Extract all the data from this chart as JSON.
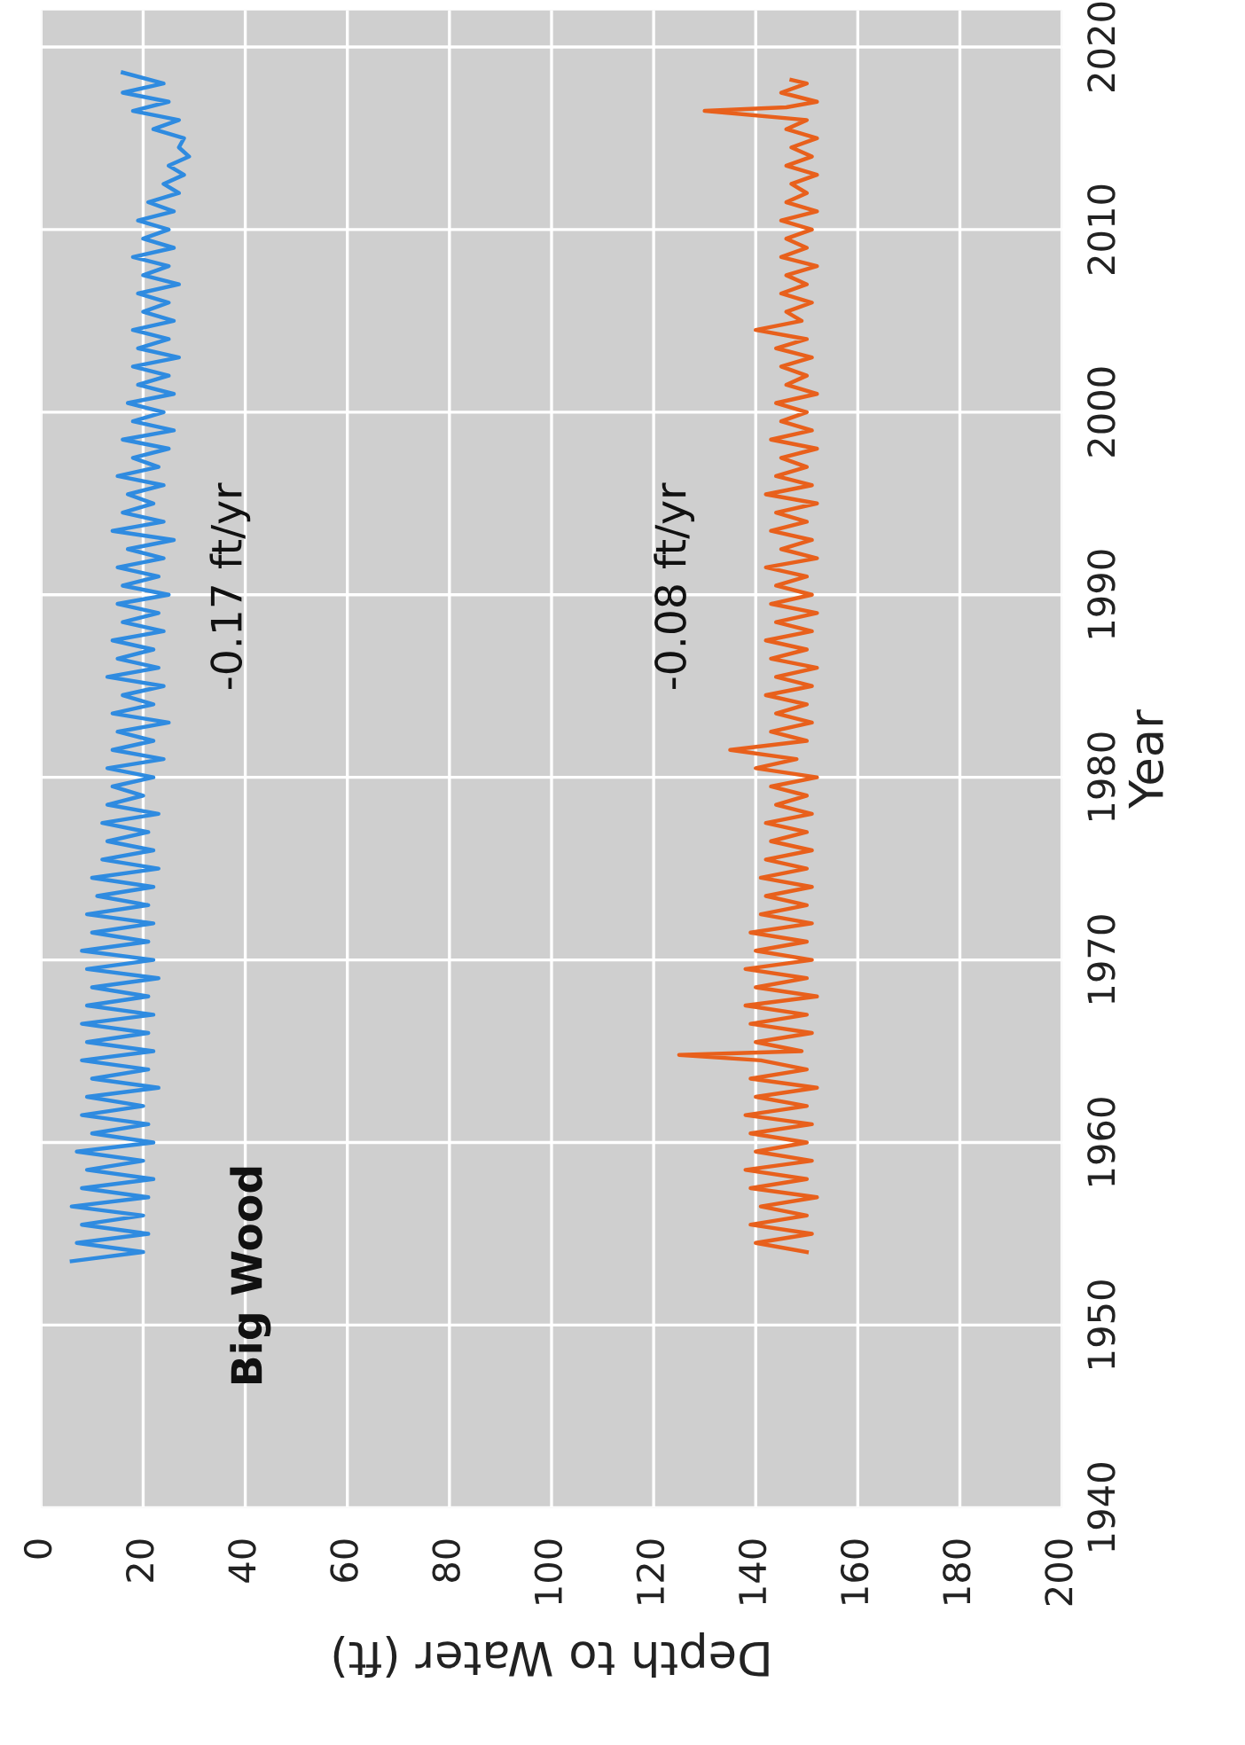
{
  "chart_data": {
    "type": "line",
    "xlabel": "Depth to Water (ft)",
    "ylabel": "Year",
    "xlim": [
      0,
      200
    ],
    "xticks": [
      0,
      20,
      40,
      60,
      80,
      100,
      120,
      140,
      160,
      180,
      200
    ],
    "ylim": [
      1940,
      2022
    ],
    "yticks": [
      1940,
      1950,
      1960,
      1970,
      1980,
      1990,
      2000,
      2010,
      2020
    ],
    "grid": true,
    "line_style": "solid",
    "annotations": [
      "Big Wood",
      "-0.17 ft/yr",
      "-0.08 ft/yr"
    ],
    "series": [
      {
        "color": "#2f8be0",
        "values": [
          1953.5,
          1954,
          1954.5,
          1955,
          1955.5,
          1956,
          1956.5,
          1957,
          1957.5,
          1958,
          1958.5,
          1959,
          1959.5,
          1960,
          1960.5,
          1961,
          1961.5,
          1962,
          1962.5,
          1963,
          1963.5,
          1964,
          1964.5,
          1965,
          1965.5,
          1966,
          1966.5,
          1967,
          1967.5,
          1968,
          1968.5,
          1969,
          1969.5,
          1970,
          1970.5,
          1971,
          1971.5,
          1972,
          1972.5,
          1973,
          1973.5,
          1974,
          1974.5,
          1975,
          1975.5,
          1976,
          1976.5,
          1977,
          1977.5,
          1978,
          1978.5,
          1979,
          1979.5,
          1980,
          1980.5,
          1981,
          1981.5,
          1982,
          1982.5,
          1983,
          1983.5,
          1984,
          1984.5,
          1985,
          1985.5,
          1986,
          1986.5,
          1987,
          1987.5,
          1988,
          1988.5,
          1989,
          1989.5,
          1990,
          1990.5,
          1991,
          1991.5,
          1992,
          1992.5,
          1993,
          1993.5,
          1994,
          1994.5,
          1995,
          1995.5,
          1996,
          1996.5,
          1997,
          1997.5,
          1998,
          1998.5,
          1999,
          1999.5,
          2000,
          2000.5,
          2001,
          2001.5,
          2002,
          2002.5,
          2003,
          2003.5,
          2004,
          2004.5,
          2005,
          2005.5,
          2006,
          2006.5,
          2007,
          2007.5,
          2008,
          2008.5,
          2009,
          2009.5,
          2010,
          2010.5,
          2011,
          2011.5,
          2012,
          2012.5,
          2013,
          2013.5,
          2014,
          2014.5,
          2015,
          2015.5,
          2016,
          2016.5,
          2017,
          2017.5,
          2018,
          2018.6
        ],
        "x": [
          6,
          20,
          7,
          21,
          8,
          20,
          6,
          21,
          8,
          22,
          9,
          20,
          7,
          22,
          10,
          21,
          8,
          20,
          9,
          23,
          10,
          21,
          8,
          22,
          9,
          21,
          8,
          22,
          9,
          21,
          10,
          23,
          9,
          22,
          8,
          21,
          10,
          22,
          9,
          21,
          11,
          22,
          10,
          23,
          12,
          22,
          13,
          21,
          12,
          23,
          13,
          20,
          14,
          22,
          13,
          24,
          14,
          22,
          15,
          25,
          14,
          22,
          16,
          24,
          13,
          23,
          15,
          22,
          14,
          24,
          16,
          23,
          15,
          25,
          16,
          23,
          15,
          24,
          17,
          26,
          14,
          24,
          16,
          22,
          17,
          24,
          15,
          23,
          18,
          25,
          16,
          26,
          18,
          24,
          17,
          26,
          19,
          25,
          18,
          27,
          19,
          25,
          18,
          26,
          20,
          25,
          19,
          27,
          20,
          25,
          18,
          26,
          20,
          25,
          19,
          26,
          21,
          27,
          24,
          28,
          25,
          29,
          27,
          28,
          22,
          27,
          18,
          25,
          16,
          24,
          16
        ]
      },
      {
        "color": "#e8601c",
        "values": [
          1954,
          1954.5,
          1955,
          1955.5,
          1956,
          1956.5,
          1957,
          1957.5,
          1958,
          1958.5,
          1959,
          1959.5,
          1960,
          1960.5,
          1961,
          1961.5,
          1962,
          1962.5,
          1963,
          1963.5,
          1964,
          1964.5,
          1964.8,
          1965,
          1965.5,
          1966,
          1966.5,
          1967,
          1967.5,
          1968,
          1968.5,
          1969,
          1969.5,
          1970,
          1970.5,
          1971,
          1971.5,
          1972,
          1972.5,
          1973,
          1973.5,
          1974,
          1974.5,
          1975,
          1975.5,
          1976,
          1976.5,
          1977,
          1977.5,
          1978,
          1978.5,
          1979,
          1979.5,
          1980,
          1980.5,
          1981,
          1981.5,
          1982,
          1982.5,
          1983,
          1983.5,
          1984,
          1984.5,
          1985,
          1985.5,
          1986,
          1986.5,
          1987,
          1987.5,
          1988,
          1988.5,
          1989,
          1989.5,
          1990,
          1990.5,
          1991,
          1991.5,
          1992,
          1992.5,
          1993,
          1993.5,
          1994,
          1994.5,
          1995,
          1995.5,
          1996,
          1996.5,
          1997,
          1997.5,
          1998,
          1998.5,
          1999,
          1999.5,
          2000,
          2000.5,
          2001,
          2001.5,
          2002,
          2002.5,
          2003,
          2003.5,
          2004,
          2004.5,
          2005,
          2005.5,
          2006,
          2006.5,
          2007,
          2007.5,
          2008,
          2008.5,
          2009,
          2009.5,
          2010,
          2010.5,
          2011,
          2011.5,
          2012,
          2012.5,
          2013,
          2013.5,
          2014,
          2014.5,
          2015,
          2015.5,
          2016,
          2016.5,
          2016.7,
          2017,
          2017.5,
          2018,
          2018.2
        ],
        "x": [
          150,
          140,
          151,
          139,
          150,
          141,
          152,
          139,
          150,
          138,
          151,
          140,
          150,
          139,
          151,
          138,
          150,
          140,
          152,
          139,
          150,
          141,
          125,
          149,
          140,
          151,
          139,
          150,
          138,
          152,
          140,
          150,
          138,
          151,
          140,
          150,
          139,
          151,
          141,
          150,
          142,
          151,
          141,
          150,
          142,
          151,
          143,
          150,
          142,
          151,
          144,
          150,
          143,
          152,
          140,
          148,
          135,
          150,
          143,
          151,
          144,
          150,
          142,
          151,
          144,
          152,
          143,
          150,
          142,
          151,
          144,
          152,
          143,
          151,
          144,
          150,
          142,
          152,
          145,
          151,
          143,
          150,
          144,
          152,
          142,
          151,
          144,
          150,
          145,
          152,
          143,
          151,
          145,
          150,
          144,
          152,
          146,
          150,
          145,
          151,
          144,
          150,
          140,
          149,
          146,
          151,
          145,
          150,
          146,
          152,
          145,
          150,
          146,
          151,
          145,
          152,
          146,
          150,
          147,
          152,
          146,
          151,
          147,
          152,
          146,
          150,
          130,
          146,
          152,
          145,
          150,
          147
        ]
      }
    ]
  }
}
